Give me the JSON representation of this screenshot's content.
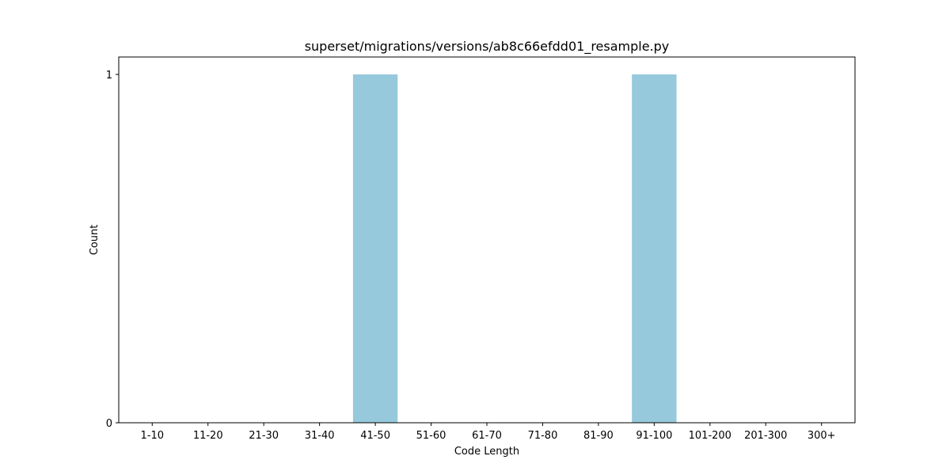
{
  "chart_data": {
    "type": "bar",
    "title": "superset/migrations/versions/ab8c66efdd01_resample.py",
    "xlabel": "Code Length",
    "ylabel": "Count",
    "categories": [
      "1-10",
      "11-20",
      "21-30",
      "31-40",
      "41-50",
      "51-60",
      "61-70",
      "71-80",
      "81-90",
      "91-100",
      "101-200",
      "201-300",
      "300+"
    ],
    "values": [
      0,
      0,
      0,
      0,
      1,
      0,
      0,
      0,
      0,
      1,
      0,
      0,
      0
    ],
    "yticks": [
      "0",
      "1"
    ],
    "ylim": [
      0,
      1.05
    ],
    "grid": false,
    "bar_color": "#96c9dc"
  }
}
